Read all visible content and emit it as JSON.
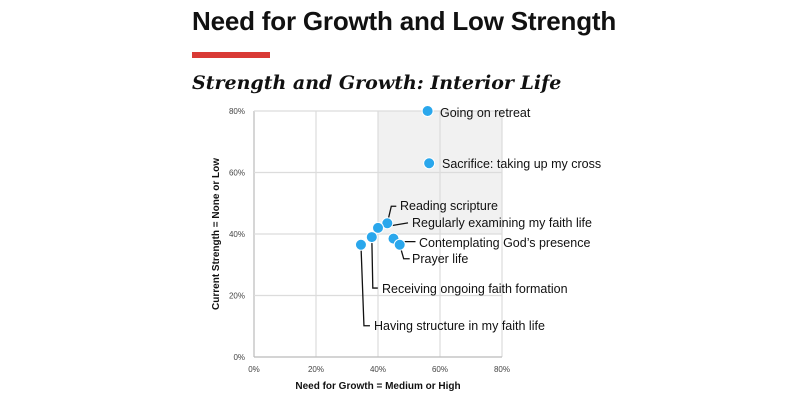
{
  "header": {
    "title": "Need for Growth and Low Strength",
    "accent_color": "#d93a35"
  },
  "chart_data": {
    "type": "scatter",
    "title": "Strength and Growth:  Interior Life",
    "xlabel": "Need for Growth = Medium or High",
    "ylabel": "Current Strength = None or Low",
    "xlim": [
      0,
      80
    ],
    "ylim": [
      0,
      80
    ],
    "xticks": [
      "0%",
      "20%",
      "40%",
      "60%",
      "80%"
    ],
    "yticks": [
      "0%",
      "20%",
      "40%",
      "60%",
      "80%"
    ],
    "grid": true,
    "highlight_region": {
      "x": [
        40,
        80
      ],
      "y": [
        40,
        80
      ],
      "color": "#f1f1f1"
    },
    "point_color": "#2aa7ec",
    "points": [
      {
        "label": "Going on retreat",
        "x": 56,
        "y": 80
      },
      {
        "label": "Sacrifice: taking up my cross",
        "x": 56.5,
        "y": 63
      },
      {
        "label": "Reading scripture",
        "x": 43,
        "y": 43.5
      },
      {
        "label": "Regularly examining my faith life",
        "x": 40,
        "y": 42
      },
      {
        "label": "Contemplating God’s presence",
        "x": 45,
        "y": 38.5
      },
      {
        "label": "Prayer life",
        "x": 47,
        "y": 36.5
      },
      {
        "label": "Receiving ongoing faith formation",
        "x": 38,
        "y": 39
      },
      {
        "label": "Having structure in my faith life",
        "x": 34.5,
        "y": 36.5
      }
    ]
  }
}
